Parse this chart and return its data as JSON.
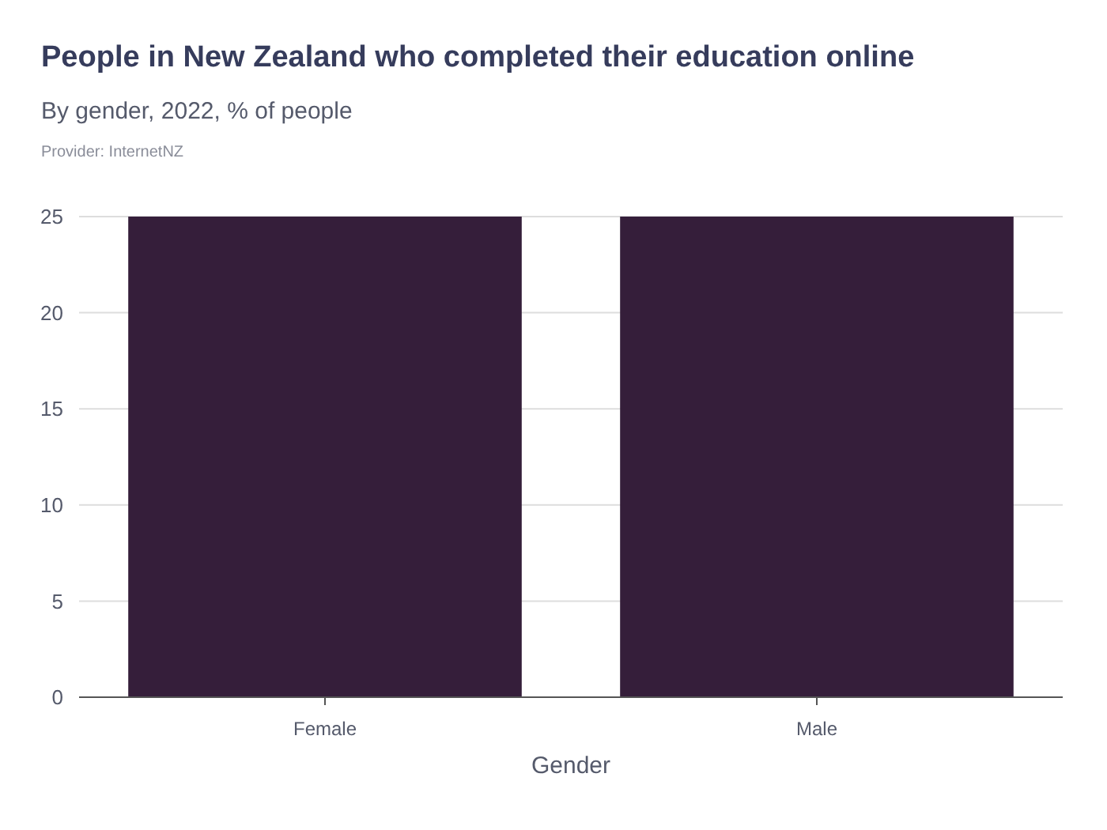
{
  "chart_data": {
    "type": "bar",
    "title": "People in New Zealand who completed their education online",
    "subtitle": "By gender, 2022, % of people",
    "annotations": [
      "Provider: InternetNZ"
    ],
    "xlabel": "Gender",
    "categories": [
      "Female",
      "Male"
    ],
    "values": [
      25,
      25
    ],
    "color": "#351e3a",
    "ylim": [
      0,
      25
    ],
    "yticks": [
      0,
      5,
      10,
      15,
      20,
      25
    ],
    "grid": "y"
  }
}
